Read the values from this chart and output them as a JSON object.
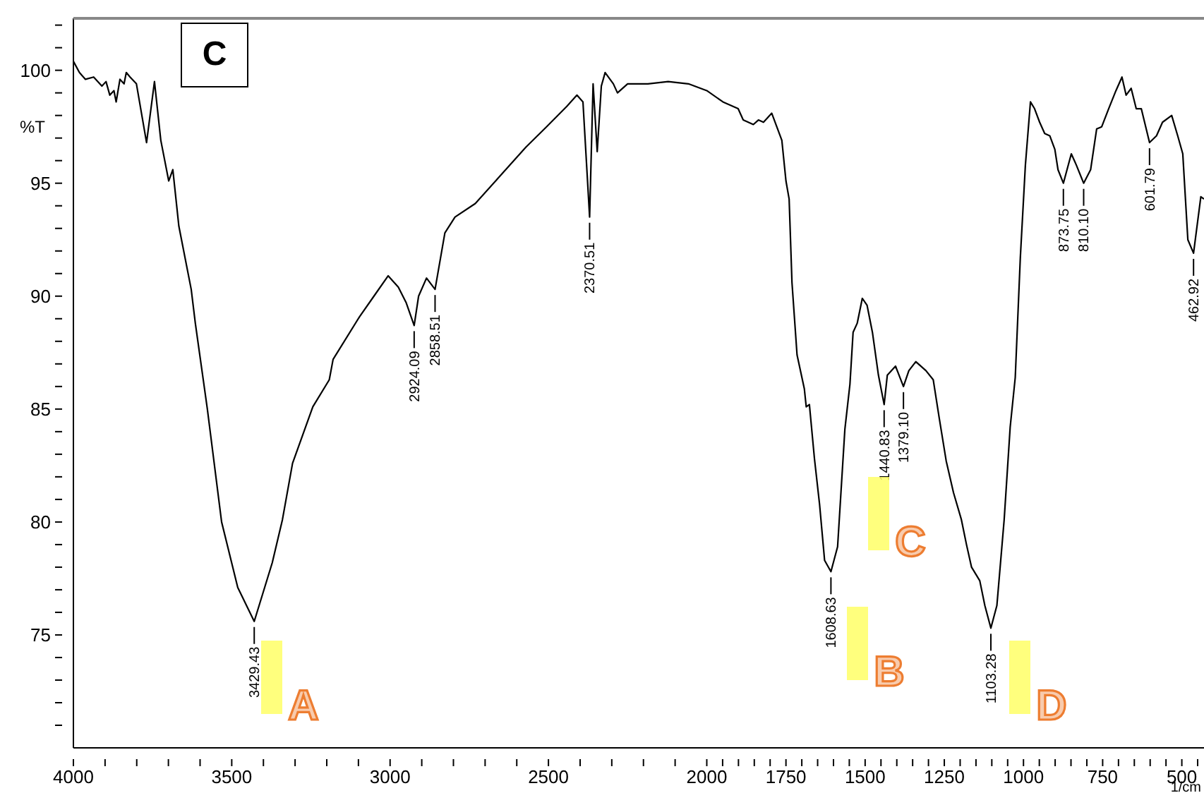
{
  "chart_data": {
    "type": "line",
    "xlabel": "1/cm",
    "ylabel": "%T",
    "x": [
      4000,
      3981,
      3962,
      3936,
      3910,
      3897,
      3885,
      3872,
      3865,
      3853,
      3840,
      3833,
      3821,
      3801,
      3769,
      3744,
      3724,
      3699,
      3686,
      3667,
      3628,
      3615,
      3590,
      3577,
      3532,
      3481,
      3429,
      3372,
      3340,
      3308,
      3244,
      3192,
      3180,
      3096,
      3051,
      3006,
      2974,
      2949,
      2924,
      2910,
      2885,
      2858,
      2827,
      2795,
      2731,
      2654,
      2571,
      2506,
      2442,
      2410,
      2391,
      2370,
      2359,
      2346,
      2333,
      2321,
      2295,
      2282,
      2250,
      2186,
      2122,
      2058,
      2000,
      1949,
      1901,
      1885,
      1853,
      1837,
      1821,
      1795,
      1779,
      1763,
      1750,
      1740,
      1731,
      1715,
      1692,
      1686,
      1676,
      1660,
      1644,
      1628,
      1608,
      1587,
      1564,
      1548,
      1538,
      1525,
      1509,
      1494,
      1477,
      1458,
      1440,
      1430,
      1404,
      1379,
      1362,
      1340,
      1308,
      1285,
      1266,
      1244,
      1221,
      1196,
      1180,
      1164,
      1138,
      1122,
      1103,
      1084,
      1061,
      1042,
      1026,
      1010,
      994,
      978,
      965,
      949,
      933,
      917,
      901,
      891,
      874,
      849,
      833,
      810,
      788,
      769,
      753,
      731,
      708,
      689,
      676,
      660,
      644,
      628,
      602,
      580,
      561,
      532,
      513,
      497,
      481,
      463,
      440,
      430
    ],
    "series": [
      {
        "color": "#000000",
        "values": [
          100.4,
          99.9,
          99.6,
          99.7,
          99.3,
          99.5,
          98.9,
          99.1,
          98.6,
          99.6,
          99.4,
          99.9,
          99.7,
          99.4,
          96.8,
          99.5,
          96.9,
          95.1,
          95.6,
          93.1,
          90.3,
          88.8,
          86.3,
          85.0,
          80.0,
          77.1,
          75.6,
          78.2,
          80.1,
          82.6,
          85.1,
          86.3,
          87.2,
          89.1,
          90.0,
          90.9,
          90.4,
          89.7,
          88.7,
          90.0,
          90.8,
          90.3,
          92.8,
          93.5,
          94.1,
          95.3,
          96.6,
          97.5,
          98.4,
          98.9,
          98.6,
          93.5,
          99.4,
          96.4,
          99.3,
          99.9,
          99.4,
          99.0,
          99.4,
          99.4,
          99.5,
          99.4,
          99.1,
          98.6,
          98.3,
          97.8,
          97.6,
          97.8,
          97.7,
          98.1,
          97.5,
          96.9,
          95.1,
          94.3,
          90.6,
          87.4,
          85.9,
          85.1,
          85.2,
          82.8,
          80.8,
          78.3,
          77.8,
          78.9,
          84.1,
          86.1,
          88.4,
          88.8,
          89.9,
          89.6,
          88.4,
          86.5,
          85.2,
          86.5,
          86.9,
          86.0,
          86.7,
          87.1,
          86.7,
          86.3,
          84.6,
          82.7,
          81.3,
          80.1,
          79.0,
          78.0,
          77.4,
          76.3,
          75.3,
          76.3,
          80.1,
          84.2,
          86.4,
          91.7,
          95.8,
          98.6,
          98.3,
          97.7,
          97.2,
          97.1,
          96.5,
          95.6,
          95.0,
          96.3,
          95.8,
          95.0,
          95.6,
          97.4,
          97.5,
          98.3,
          99.1,
          99.7,
          98.9,
          99.2,
          98.3,
          98.3,
          96.8,
          97.1,
          97.7,
          98.0,
          97.1,
          96.3,
          92.5,
          91.9,
          94.4,
          94.3
        ]
      }
    ],
    "xlim": [
      4000,
      430
    ],
    "ylim": [
      70,
      102.3
    ],
    "xticks": [
      4000,
      {
        "value": 3900,
        "label": null
      },
      {
        "value": 3800,
        "label": null
      },
      {
        "value": 3700,
        "label": null
      },
      {
        "value": 3600,
        "label": null
      },
      3500,
      {
        "value": 3400,
        "label": null
      },
      {
        "value": 3300,
        "label": null
      },
      {
        "value": 3200,
        "label": null
      },
      {
        "value": 3100,
        "label": null
      },
      3000,
      {
        "value": 2900,
        "label": null
      },
      {
        "value": 2800,
        "label": null
      },
      {
        "value": 2700,
        "label": null
      },
      {
        "value": 2600,
        "label": null
      },
      2500,
      {
        "value": 2400,
        "label": null
      },
      {
        "value": 2300,
        "label": null
      },
      {
        "value": 2200,
        "label": null
      },
      {
        "value": 2100,
        "label": null
      },
      2000,
      {
        "value": 1950,
        "label": null
      },
      {
        "value": 1900,
        "label": null
      },
      {
        "value": 1850,
        "label": null
      },
      {
        "value": 1800,
        "label": null
      },
      1750,
      {
        "value": 1700,
        "label": null
      },
      {
        "value": 1650,
        "label": null
      },
      {
        "value": 1600,
        "label": null
      },
      {
        "value": 1550,
        "label": null
      },
      1500,
      {
        "value": 1450,
        "label": null
      },
      {
        "value": 1400,
        "label": null
      },
      {
        "value": 1350,
        "label": null
      },
      {
        "value": 1300,
        "label": null
      },
      1250,
      {
        "value": 1200,
        "label": null
      },
      {
        "value": 1150,
        "label": null
      },
      {
        "value": 1100,
        "label": null
      },
      {
        "value": 1050,
        "label": null
      },
      1000,
      {
        "value": 950,
        "label": null
      },
      {
        "value": 900,
        "label": null
      },
      {
        "value": 850,
        "label": null
      },
      {
        "value": 800,
        "label": null
      },
      750,
      {
        "value": 700,
        "label": null
      },
      {
        "value": 650,
        "label": null
      },
      {
        "value": 600,
        "label": null
      },
      {
        "value": 550,
        "label": null
      },
      500,
      {
        "value": 450,
        "label": null
      }
    ],
    "yticks": [
      {
        "value": 71,
        "label": null
      },
      {
        "value": 72,
        "label": null
      },
      {
        "value": 73,
        "label": null
      },
      {
        "value": 74,
        "label": null
      },
      75,
      {
        "value": 76,
        "label": null
      },
      {
        "value": 77,
        "label": null
      },
      {
        "value": 78,
        "label": null
      },
      {
        "value": 79,
        "label": null
      },
      80,
      {
        "value": 81,
        "label": null
      },
      {
        "value": 82,
        "label": null
      },
      {
        "value": 83,
        "label": null
      },
      {
        "value": 84,
        "label": null
      },
      85,
      {
        "value": 86,
        "label": null
      },
      {
        "value": 87,
        "label": null
      },
      {
        "value": 88,
        "label": null
      },
      {
        "value": 89,
        "label": null
      },
      90,
      {
        "value": 91,
        "label": null
      },
      {
        "value": 92,
        "label": null
      },
      {
        "value": 93,
        "label": null
      },
      {
        "value": 94,
        "label": null
      },
      95,
      {
        "value": 96,
        "label": null
      },
      {
        "value": 97,
        "label": null
      },
      {
        "value": 98,
        "label": null
      },
      {
        "value": 99,
        "label": null
      },
      100,
      {
        "value": 101,
        "label": null
      },
      {
        "value": 102,
        "label": null
      }
    ],
    "grid": false,
    "marker": "none",
    "line_style": "solid",
    "annotations": [
      "C",
      {
        "text": "3429.43",
        "x": 3429,
        "y": 75.6
      },
      {
        "text": "2924.09",
        "x": 2924,
        "y": 88.7
      },
      {
        "text": "2858.51",
        "x": 2858,
        "y": 90.3
      },
      {
        "text": "2370.51",
        "x": 2370,
        "y": 93.5
      },
      {
        "text": "1608.63",
        "x": 1608,
        "y": 77.8
      },
      {
        "text": "1440.83",
        "x": 1440,
        "y": 85.2
      },
      {
        "text": "1379.10",
        "x": 1379,
        "y": 86.0
      },
      {
        "text": "1103.28",
        "x": 1103,
        "y": 75.3
      },
      {
        "text": "873.75",
        "x": 874,
        "y": 95.0
      },
      {
        "text": "810.10",
        "x": 810,
        "y": 95.0
      },
      {
        "text": "601.79",
        "x": 602,
        "y": 96.8
      },
      {
        "text": "462.92",
        "x": 463,
        "y": 91.9
      },
      "A",
      "B",
      "C",
      "D"
    ]
  }
}
